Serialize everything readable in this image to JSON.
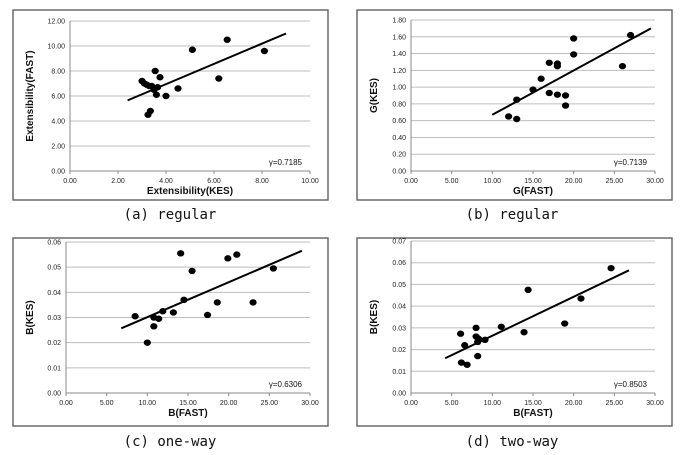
{
  "chart_data": [
    {
      "type": "scatter",
      "caption": "(a) regular",
      "xlabel": "Extensibility(KES)",
      "ylabel": "Extensibility(FAST)",
      "xlim": [
        0,
        10
      ],
      "ylim": [
        0,
        12
      ],
      "xticks": [
        "0.00",
        "2.00",
        "4.00",
        "6.00",
        "8.00",
        "10.00"
      ],
      "yticks": [
        "0.00",
        "2.00",
        "4.00",
        "6.00",
        "8.00",
        "10.00",
        "12.00"
      ],
      "grid": "horizontal",
      "annotation": "γ=0.7185",
      "points": [
        [
          3.0,
          7.2
        ],
        [
          3.1,
          7.0
        ],
        [
          3.2,
          6.9
        ],
        [
          3.3,
          6.8
        ],
        [
          3.4,
          6.8
        ],
        [
          3.5,
          6.5
        ],
        [
          3.6,
          6.1
        ],
        [
          3.55,
          8.0
        ],
        [
          3.75,
          7.5
        ],
        [
          3.65,
          6.7
        ],
        [
          3.25,
          4.5
        ],
        [
          3.35,
          4.8
        ],
        [
          4.0,
          6.0
        ],
        [
          4.5,
          6.6
        ],
        [
          5.1,
          9.7
        ],
        [
          6.2,
          7.4
        ],
        [
          6.55,
          10.5
        ],
        [
          8.1,
          9.6
        ]
      ],
      "trendline": [
        [
          2.4,
          5.65
        ],
        [
          9.0,
          11.0
        ]
      ]
    },
    {
      "type": "scatter",
      "caption": "(b) regular",
      "xlabel": "G(FAST)",
      "ylabel": "G(KES)",
      "xlim": [
        0,
        30
      ],
      "ylim": [
        0,
        1.8
      ],
      "xticks": [
        "0.00",
        "5.00",
        "10.00",
        "15.00",
        "20.00",
        "25.00",
        "30.00"
      ],
      "yticks": [
        "0.00",
        "0.20",
        "0.40",
        "0.60",
        "0.80",
        "1.00",
        "1.20",
        "1.40",
        "1.60",
        "1.80"
      ],
      "grid": "horizontal",
      "annotation": "γ=0.7139",
      "points": [
        [
          12,
          0.65
        ],
        [
          13,
          0.62
        ],
        [
          13,
          0.85
        ],
        [
          15,
          0.97
        ],
        [
          16,
          1.1
        ],
        [
          17,
          1.29
        ],
        [
          17,
          0.93
        ],
        [
          18,
          1.28
        ],
        [
          18,
          1.25
        ],
        [
          18,
          0.91
        ],
        [
          19,
          0.9
        ],
        [
          19,
          0.78
        ],
        [
          20,
          1.58
        ],
        [
          20,
          1.39
        ],
        [
          26,
          1.25
        ],
        [
          27,
          1.62
        ]
      ],
      "trendline": [
        [
          10,
          0.67
        ],
        [
          29.5,
          1.7
        ]
      ]
    },
    {
      "type": "scatter",
      "caption": "(c) one-way",
      "xlabel": "B(FAST)",
      "ylabel": "B(KES)",
      "xlim": [
        0,
        30
      ],
      "ylim": [
        0,
        0.06
      ],
      "xticks": [
        "0.00",
        "5.00",
        "10.00",
        "15.00",
        "20.00",
        "25.00",
        "30.00"
      ],
      "yticks": [
        "0.00",
        "0.01",
        "0.02",
        "0.03",
        "0.04",
        "0.05",
        "0.06"
      ],
      "grid": "horizontal",
      "annotation": "γ=0.6306",
      "points": [
        [
          8.5,
          0.0305
        ],
        [
          10,
          0.02
        ],
        [
          10.8,
          0.03
        ],
        [
          10.8,
          0.0265
        ],
        [
          11.4,
          0.0295
        ],
        [
          11.9,
          0.0325
        ],
        [
          13.2,
          0.032
        ],
        [
          14.1,
          0.0555
        ],
        [
          14.5,
          0.037
        ],
        [
          15.5,
          0.0485
        ],
        [
          17.4,
          0.031
        ],
        [
          18.6,
          0.036
        ],
        [
          19.9,
          0.0535
        ],
        [
          21,
          0.055
        ],
        [
          23,
          0.036
        ],
        [
          25.5,
          0.0495
        ]
      ],
      "trendline": [
        [
          6.8,
          0.0257
        ],
        [
          29,
          0.0565
        ]
      ]
    },
    {
      "type": "scatter",
      "caption": "(d) two-way",
      "xlabel": "B(FAST)",
      "ylabel": "B(KES)",
      "xlim": [
        0,
        30
      ],
      "ylim": [
        0,
        0.07
      ],
      "xticks": [
        "0.00",
        "5.00",
        "10.00",
        "15.00",
        "20.00",
        "25.00",
        "30.00"
      ],
      "yticks": [
        "0.00",
        "0.01",
        "0.02",
        "0.03",
        "0.04",
        "0.05",
        "0.06",
        "0.07"
      ],
      "grid": "horizontal",
      "annotation": "γ=0.8503",
      "points": [
        [
          6.1,
          0.0273
        ],
        [
          6.2,
          0.014
        ],
        [
          6.6,
          0.022
        ],
        [
          6.9,
          0.013
        ],
        [
          8,
          0.03
        ],
        [
          8,
          0.026
        ],
        [
          8.2,
          0.0235
        ],
        [
          8.2,
          0.017
        ],
        [
          8.3,
          0.025
        ],
        [
          9.1,
          0.0245
        ],
        [
          11.1,
          0.0305
        ],
        [
          13.9,
          0.028
        ],
        [
          14.4,
          0.0475
        ],
        [
          18.9,
          0.032
        ],
        [
          20.9,
          0.0435
        ],
        [
          24.6,
          0.0575
        ]
      ],
      "trendline": [
        [
          4.2,
          0.016
        ],
        [
          26.8,
          0.0565
        ]
      ]
    }
  ]
}
